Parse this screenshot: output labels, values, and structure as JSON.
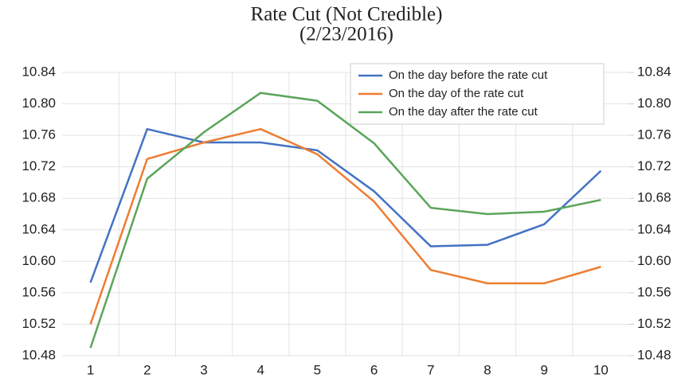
{
  "chart_data": {
    "type": "line",
    "title": "Rate Cut (Not Credible)",
    "subtitle": "(2/23/2016)",
    "categories": [
      "1",
      "2",
      "3",
      "4",
      "5",
      "6",
      "7",
      "8",
      "9",
      "10"
    ],
    "series": [
      {
        "name": "On the day before the rate cut",
        "color": "#4472c4",
        "values": [
          10.573,
          10.768,
          10.751,
          10.751,
          10.741,
          10.689,
          10.619,
          10.621,
          10.647,
          10.715
        ]
      },
      {
        "name": "On the day of the rate cut",
        "color": "#ed7d31",
        "values": [
          10.52,
          10.73,
          10.751,
          10.768,
          10.736,
          10.676,
          10.589,
          10.572,
          10.572,
          10.593
        ]
      },
      {
        "name": "On the day after the rate cut",
        "color": "#5aa55a",
        "values": [
          10.49,
          10.705,
          10.764,
          10.814,
          10.804,
          10.75,
          10.668,
          10.66,
          10.663,
          10.678
        ]
      }
    ],
    "ylim": [
      10.48,
      10.84
    ],
    "yticks": [
      {
        "value": 10.48,
        "label": "10.48"
      },
      {
        "value": 10.52,
        "label": "10.52"
      },
      {
        "value": 10.56,
        "label": "10.56"
      },
      {
        "value": 10.6,
        "label": "10.60"
      },
      {
        "value": 10.64,
        "label": "10.64"
      },
      {
        "value": 10.68,
        "label": "10.68"
      },
      {
        "value": 10.72,
        "label": "10.72"
      },
      {
        "value": 10.76,
        "label": "10.76"
      },
      {
        "value": 10.8,
        "label": "10.80"
      },
      {
        "value": 10.84,
        "label": "10.84"
      }
    ],
    "y2lim": [
      10.48,
      10.84
    ],
    "y2ticks": [
      {
        "value": 10.48,
        "label": "10.48"
      },
      {
        "value": 10.52,
        "label": "10.52"
      },
      {
        "value": 10.56,
        "label": "10.56"
      },
      {
        "value": 10.6,
        "label": "10.60"
      },
      {
        "value": 10.64,
        "label": "10.64"
      },
      {
        "value": 10.68,
        "label": "10.68"
      },
      {
        "value": 10.72,
        "label": "10.72"
      },
      {
        "value": 10.76,
        "label": "10.76"
      },
      {
        "value": 10.8,
        "label": "10.80"
      },
      {
        "value": 10.84,
        "label": "10.84"
      }
    ],
    "grid": true,
    "legend": "upper-right"
  }
}
